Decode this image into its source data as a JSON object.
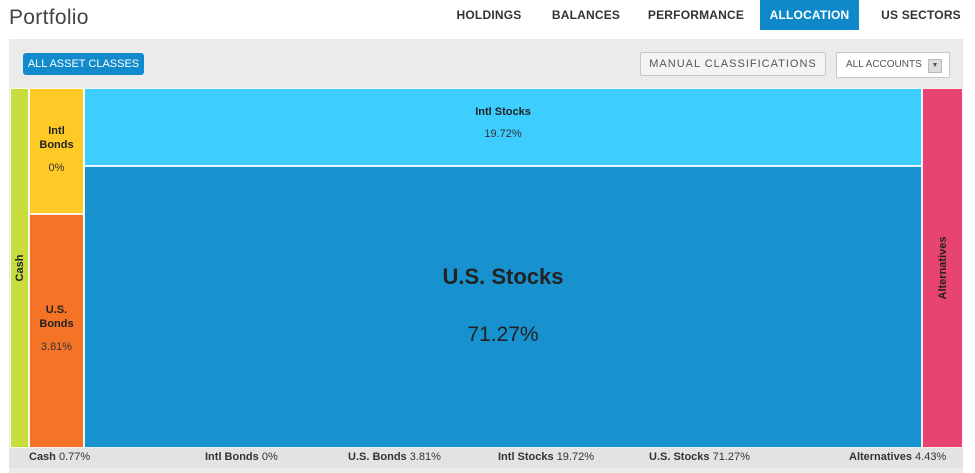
{
  "header": {
    "title": "Portfolio"
  },
  "nav": {
    "tabs": [
      {
        "label": "HOLDINGS",
        "active": false
      },
      {
        "label": "BALANCES",
        "active": false
      },
      {
        "label": "PERFORMANCE",
        "active": false
      },
      {
        "label": "ALLOCATION",
        "active": true
      },
      {
        "label": "US SECTORS",
        "active": false
      }
    ]
  },
  "toolbar": {
    "all_asset_classes": "ALL ASSET CLASSES",
    "manual_classifications": "MANUAL CLASSIFICATIONS",
    "accounts_select": "ALL ACCOUNTS"
  },
  "colors": {
    "cash": "#c7dc3d",
    "intl_bonds": "#ffc926",
    "us_bonds": "#f57326",
    "intl_stocks": "#3dcdfe",
    "us_stocks": "#1891cf",
    "alternatives": "#e84472",
    "accent": "#0f88c9"
  },
  "allocation": {
    "cash": {
      "name": "Cash",
      "percent": "0.77%"
    },
    "intl_bonds": {
      "name": "Intl Bonds",
      "name_l1": "Intl",
      "name_l2": "Bonds",
      "percent": "0%"
    },
    "us_bonds": {
      "name": "U.S. Bonds",
      "name_l1": "U.S.",
      "name_l2": "Bonds",
      "percent": "3.81%"
    },
    "intl_stocks": {
      "name": "Intl Stocks",
      "percent": "19.72%"
    },
    "us_stocks": {
      "name": "U.S. Stocks",
      "percent": "71.27%"
    },
    "alternatives": {
      "name": "Alternatives",
      "percent": "4.43%"
    }
  }
}
